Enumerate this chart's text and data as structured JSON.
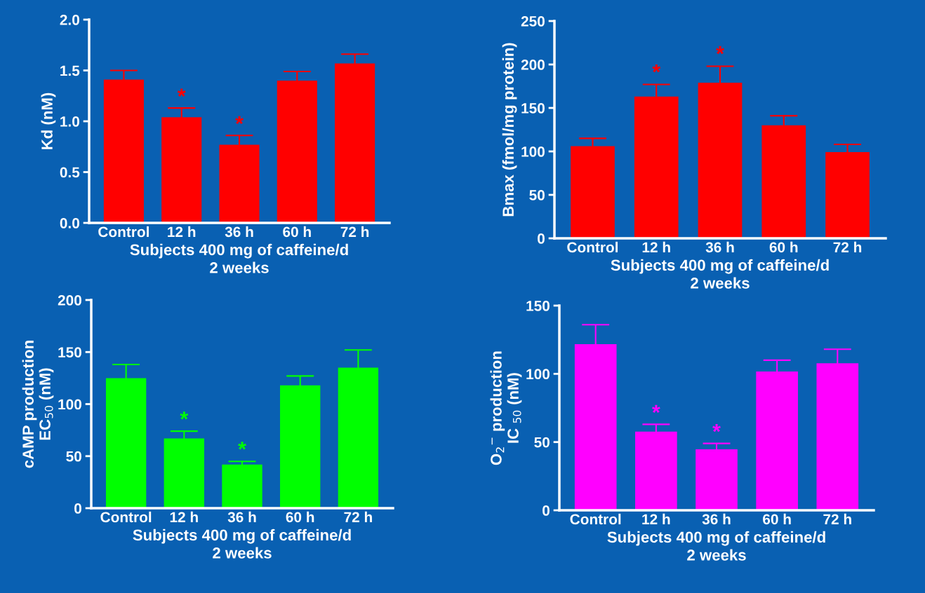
{
  "chart_data": [
    {
      "type": "bar",
      "xlabel": "Subjects 400 mg of caffeine/d\n2 weeks",
      "ylabel": "Kd (nM)",
      "categories": [
        "Control",
        "12 h",
        "36 h",
        "60 h",
        "72 h"
      ],
      "series": [
        {
          "color": "#ff0000",
          "values": [
            1.4,
            1.03,
            0.76,
            1.39,
            1.56
          ],
          "errors": [
            0.1,
            0.1,
            0.1,
            0.1,
            0.1
          ]
        }
      ],
      "ylim": [
        0,
        2.0
      ],
      "yticks": [
        {
          "value": 0,
          "label": "0.0"
        },
        0.5,
        {
          "value": 1,
          "label": "1.0"
        },
        1.5,
        {
          "value": 2,
          "label": "2.0"
        }
      ],
      "annotations": [
        "*",
        "*"
      ]
    },
    {
      "type": "bar",
      "xlabel": "Subjects 400 mg of caffeine/d\n2 weeks",
      "ylabel": "Bmax (fmol/mg protein)",
      "categories": [
        "Control",
        "12 h",
        "36 h",
        "60 h",
        "72 h"
      ],
      "series": [
        {
          "color": "#ff0000",
          "values": [
            105,
            162,
            178,
            129,
            98
          ],
          "errors": [
            10,
            15,
            20,
            12,
            10
          ]
        }
      ],
      "ylim": [
        0,
        250
      ],
      "yticks": [
        0,
        50,
        100,
        150,
        200,
        250
      ],
      "annotations": [
        "*",
        "*"
      ]
    },
    {
      "type": "bar",
      "xlabel": "Subjects 400 mg of caffeine/d\n2 weeks",
      "ylabel": "cAMP production\nEC$_{50}$ (nM)",
      "categories": [
        "Control",
        "12 h",
        "36 h",
        "60 h",
        "72 h"
      ],
      "series": [
        {
          "color": "#00ff00",
          "values": [
            124,
            66,
            41,
            117,
            134
          ],
          "errors": [
            14,
            8,
            4,
            10,
            18
          ]
        }
      ],
      "ylim": [
        0,
        200
      ],
      "yticks": [
        0,
        50,
        100,
        150,
        200
      ],
      "annotations": [
        "*",
        "*"
      ]
    },
    {
      "type": "bar",
      "xlabel": "Subjects 400 mg of caffeine/d\n2 weeks",
      "ylabel": "O$_{2}$$^{−}$ production\nIC $_{50}$ (nM)",
      "categories": [
        "Control",
        "12 h",
        "36 h",
        "60 h",
        "72 h"
      ],
      "series": [
        {
          "color": "#ff00ff",
          "values": [
            121,
            57,
            44,
            101,
            107
          ],
          "errors": [
            15,
            6,
            5,
            9,
            11
          ]
        }
      ],
      "ylim": [
        0,
        150
      ],
      "yticks": [
        0,
        50,
        100,
        150
      ],
      "annotations": [
        "*",
        "*"
      ]
    }
  ]
}
